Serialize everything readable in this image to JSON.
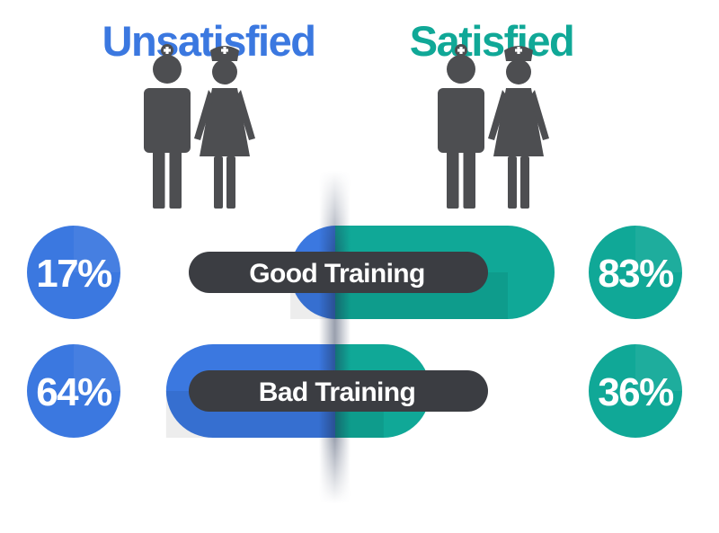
{
  "headers": {
    "left": "Unsatisfied",
    "right": "Satisfied"
  },
  "colors": {
    "unsatisfied": "#3b78e0",
    "satisfied": "#10a897",
    "label_bar": "#3b3d42",
    "figure": "#4d4e51"
  },
  "icons": [
    "male-doctor-icon",
    "female-nurse-icon"
  ],
  "chart_data": {
    "type": "bar",
    "orientation": "horizontal-diverging",
    "categories": [
      "Good Training",
      "Bad Training"
    ],
    "series": [
      {
        "name": "Unsatisfied",
        "values": [
          17,
          64
        ],
        "labels": [
          "17%",
          "64%"
        ]
      },
      {
        "name": "Satisfied",
        "values": [
          83,
          36
        ],
        "labels": [
          "83%",
          "36%"
        ]
      }
    ],
    "unit": "%"
  }
}
